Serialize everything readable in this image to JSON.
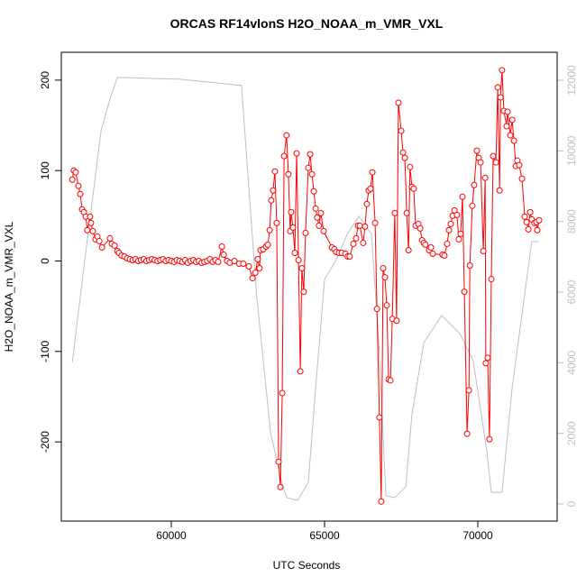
{
  "chart_data": {
    "type": "line",
    "title": "ORCAS RF14vlonS H2O_NOAA_m_VMR_VXL",
    "xlabel": "UTC Seconds",
    "ylabel": "H2O_NOAA_m_VMR_VXL",
    "xlim": [
      56412,
      72588
    ],
    "ylim": [
      -287.6,
      230.8
    ],
    "y2lim": [
      -485,
      12792
    ],
    "xticks": [
      60000,
      65000,
      70000
    ],
    "yticks": [
      -200,
      -100,
      0,
      100,
      200
    ],
    "y2ticks": [
      0,
      2000,
      4000,
      6000,
      8000,
      10000,
      12000
    ],
    "series": [
      {
        "color": "#ff0000",
        "markers": true,
        "x": [
          56770,
          56820,
          56880,
          56970,
          57030,
          57090,
          57150,
          57210,
          57260,
          57350,
          57380,
          57440,
          57530,
          57590,
          57650,
          57740,
          58000,
          58060,
          58150,
          58240,
          58290,
          58380,
          58470,
          58560,
          58650,
          58740,
          58830,
          58920,
          59010,
          59100,
          59190,
          59280,
          59370,
          59460,
          59550,
          59640,
          59730,
          59820,
          59910,
          60000,
          60090,
          60180,
          60270,
          60360,
          60450,
          60540,
          60630,
          60720,
          60810,
          60900,
          60990,
          61080,
          61170,
          61260,
          61350,
          61440,
          61530,
          61650,
          61710,
          61820,
          61910,
          62060,
          62210,
          62350,
          62530,
          62650,
          62740,
          62820,
          62880,
          62910,
          63000,
          63090,
          63150,
          63210,
          63260,
          63320,
          63380,
          63440,
          63500,
          63560,
          63620,
          63680,
          63760,
          63820,
          63880,
          63910,
          63970,
          64030,
          64090,
          64150,
          64210,
          64260,
          64320,
          64380,
          64470,
          64530,
          64590,
          64650,
          64710,
          64760,
          64820,
          64880,
          64970,
          65240,
          65320,
          65380,
          65470,
          65560,
          65680,
          65760,
          65820,
          65940,
          66030,
          66090,
          66150,
          66260,
          66320,
          66380,
          66440,
          66500,
          66560,
          66650,
          66710,
          66790,
          66850,
          66910,
          66970,
          67030,
          67090,
          67150,
          67210,
          67290,
          67350,
          67410,
          67500,
          67560,
          67620,
          67680,
          67740,
          67790,
          67850,
          67910,
          67970,
          68060,
          68120,
          68180,
          68240,
          68290,
          68410,
          68470,
          68530,
          68850,
          68910,
          69000,
          69060,
          69120,
          69180,
          69240,
          69320,
          69380,
          69440,
          69500,
          69560,
          69650,
          69710,
          69740,
          69820,
          69880,
          69970,
          70030,
          70090,
          70180,
          70240,
          70260,
          70320,
          70380,
          70440,
          70500,
          70590,
          70650,
          70710,
          70740,
          70790,
          70850,
          70940,
          70970,
          71060,
          71120,
          71180,
          71240,
          71290,
          71350,
          71440,
          71530,
          71590,
          71650,
          71710,
          71760,
          71850,
          71910,
          71940,
          72000
        ],
        "values": [
          90,
          100,
          98,
          83,
          74,
          57,
          54,
          49,
          34,
          49,
          42,
          33,
          24,
          27,
          22,
          15,
          25,
          19,
          17,
          11,
          9,
          6,
          5,
          3,
          2,
          1,
          2,
          0,
          1,
          2,
          0,
          1,
          2,
          1,
          0,
          1,
          2,
          0,
          1,
          0,
          -1,
          1,
          0,
          -1,
          1,
          -2,
          0,
          1,
          -1,
          0,
          -2,
          -1,
          0,
          2,
          -1,
          1,
          -1,
          16,
          7,
          0,
          -2,
          0,
          -3,
          -3,
          -6,
          -19,
          -13,
          2,
          -8,
          12,
          13,
          16,
          18,
          34,
          67,
          78,
          99,
          42,
          -222,
          -250,
          -146,
          116,
          139,
          96,
          33,
          54,
          37,
          9,
          119,
          1,
          -122,
          -8,
          -34,
          31,
          103,
          118,
          96,
          77,
          58,
          48,
          39,
          53,
          33,
          15,
          13,
          10,
          9,
          9,
          8,
          5,
          5,
          19,
          25,
          39,
          39,
          20,
          38,
          63,
          78,
          80,
          98,
          42,
          -53,
          -173,
          -266,
          -8,
          -18,
          -49,
          -131,
          -132,
          -64,
          53,
          -66,
          175,
          144,
          120,
          114,
          53,
          12,
          104,
          82,
          80,
          39,
          41,
          36,
          23,
          20,
          18,
          12,
          15,
          8,
          7,
          6,
          19,
          34,
          41,
          50,
          56,
          51,
          24,
          30,
          71,
          -34,
          -191,
          -143,
          -5,
          61,
          84,
          122,
          114,
          109,
          11,
          92,
          -113,
          -107,
          -197,
          -20,
          116,
          109,
          192,
          78,
          181,
          211,
          166,
          149,
          165,
          139,
          156,
          133,
          105,
          111,
          106,
          91,
          49,
          43,
          35,
          54,
          46,
          42,
          43,
          34,
          45
        ]
      },
      {
        "color": "#bebebe",
        "axis": "y2",
        "markers": false,
        "x": [
          56770,
          57210,
          57710,
          58000,
          58240,
          60290,
          62290,
          62470,
          62790,
          63240,
          63620,
          63770,
          64120,
          64470,
          64710,
          65000,
          65350,
          65740,
          66120,
          66530,
          66770,
          67000,
          67290,
          67650,
          67850,
          68240,
          68820,
          69410,
          69850,
          70290,
          70440,
          70790,
          71120,
          71760,
          72000
        ],
        "values": [
          4010,
          7130,
          10570,
          11470,
          12080,
          12030,
          11850,
          9680,
          5850,
          2020,
          540,
          180,
          100,
          610,
          3290,
          6360,
          6870,
          7640,
          8150,
          7640,
          4570,
          230,
          180,
          490,
          2530,
          4570,
          5340,
          4830,
          4060,
          1510,
          330,
          330,
          3290,
          7430,
          7430
        ]
      }
    ]
  }
}
